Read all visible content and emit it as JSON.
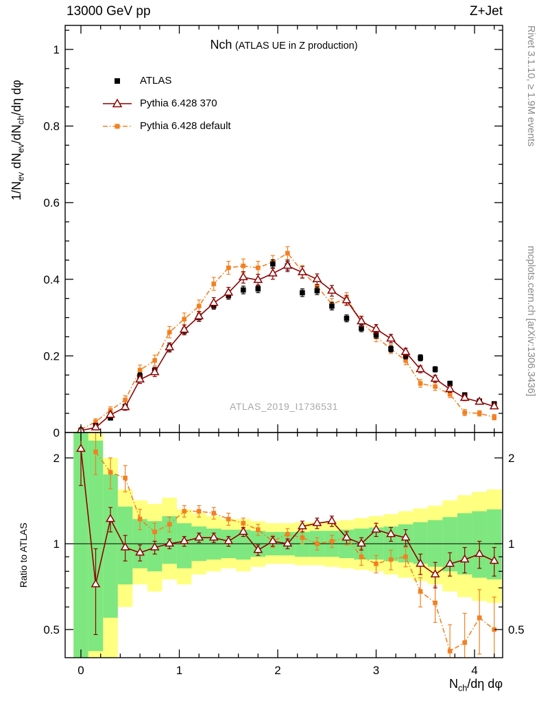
{
  "header": {
    "left": "13000 GeV pp",
    "right": "Z+Jet"
  },
  "side": {
    "top": "Rivet 3.1.10, ≥ 1.9M events",
    "bottom": "mcplots.cern.ch [arXiv:1306.3436]"
  },
  "title": {
    "main": "Nch",
    "paren": "(ATLAS UE in Z production)"
  },
  "watermark": {
    "text": "ATLAS_2019_I1736531"
  },
  "axes": {
    "ylabel_main_parts": {
      "a": "1/N",
      "b": "ev",
      "c": " dN",
      "d": "ev",
      "e": "/dN",
      "f": "ch",
      "g": "/dη dφ"
    },
    "ylabel_ratio": "Ratio to ATLAS",
    "xlabel_parts": {
      "a": "N",
      "b": "ch",
      "c": "/dη dφ"
    }
  },
  "legend": {
    "items": [
      {
        "label": "ATLAS",
        "marker": "filled-square",
        "color_key": "atlas"
      },
      {
        "label": "Pythia 6.428 370",
        "marker": "open-triangle-solid-line",
        "color_key": "p370"
      },
      {
        "label": "Pythia 6.428 default",
        "marker": "filled-square-dashdot-line",
        "color_key": "pdef"
      }
    ]
  },
  "colors": {
    "atlas": "#000000",
    "p370": "#8b0000",
    "pdef": "#f28022",
    "band_yellow": "#ffff80",
    "band_green": "#7fe77f",
    "frame": "#000000",
    "watermark": "#a8a8a8",
    "side_text": "#888888"
  },
  "chart_data": {
    "type": "line",
    "title": "Nch (ATLAS UE in Z production)",
    "xlabel": "N_ch/dη dφ",
    "ylabel_main": "1/N_ev dN_ev/dN_ch/dη dφ",
    "ylabel_ratio": "Ratio to ATLAS",
    "x_range": [
      -0.16,
      4.29
    ],
    "y_main_range": [
      0,
      1.063
    ],
    "y_ratio_range": [
      0.4,
      2.46
    ],
    "y_ratio_scale": "log",
    "legend_position": "top-left",
    "grid": false,
    "bin_halfwidth": 0.075,
    "x": [
      0.0,
      0.15,
      0.3,
      0.45,
      0.6,
      0.75,
      0.9,
      1.05,
      1.2,
      1.35,
      1.5,
      1.65,
      1.8,
      1.95,
      2.1,
      2.25,
      2.4,
      2.55,
      2.7,
      2.85,
      3.0,
      3.15,
      3.3,
      3.45,
      3.6,
      3.75,
      3.9,
      4.05,
      4.2
    ],
    "series": [
      {
        "name": "ATLAS",
        "marker": "square",
        "color_key": "atlas",
        "line": "none",
        "values": [
          0.005,
          0.018,
          0.038,
          0.068,
          0.148,
          0.162,
          0.222,
          0.265,
          0.3,
          0.332,
          0.358,
          0.372,
          0.375,
          0.44,
          0.435,
          0.365,
          0.37,
          0.33,
          0.298,
          0.272,
          0.255,
          0.218,
          0.2,
          0.195,
          0.165,
          0.128,
          0.098,
          0.082,
          0.075
        ],
        "errors": [
          0.003,
          0.004,
          0.005,
          0.006,
          0.008,
          0.008,
          0.009,
          0.009,
          0.01,
          0.01,
          0.01,
          0.01,
          0.01,
          0.011,
          0.011,
          0.01,
          0.01,
          0.01,
          0.009,
          0.009,
          0.009,
          0.008,
          0.008,
          0.008,
          0.007,
          0.006,
          0.006,
          0.005,
          0.005
        ]
      },
      {
        "name": "Pythia 6.428 370",
        "marker": "triangle-open",
        "color_key": "p370",
        "line": "solid",
        "values": [
          0.005,
          0.013,
          0.046,
          0.066,
          0.138,
          0.157,
          0.222,
          0.268,
          0.303,
          0.338,
          0.365,
          0.405,
          0.398,
          0.415,
          0.435,
          0.418,
          0.4,
          0.37,
          0.345,
          0.29,
          0.27,
          0.245,
          0.21,
          0.165,
          0.14,
          0.113,
          0.09,
          0.08,
          0.068
        ],
        "errors": [
          0.004,
          0.006,
          0.007,
          0.008,
          0.01,
          0.011,
          0.012,
          0.013,
          0.013,
          0.014,
          0.014,
          0.015,
          0.015,
          0.015,
          0.015,
          0.015,
          0.014,
          0.014,
          0.013,
          0.013,
          0.012,
          0.011,
          0.01,
          0.009,
          0.009,
          0.008,
          0.007,
          0.006,
          0.006
        ]
      },
      {
        "name": "Pythia 6.428 default",
        "marker": "square-small",
        "color_key": "pdef",
        "line": "dashdot",
        "values": [
          0.008,
          0.028,
          0.058,
          0.085,
          0.163,
          0.188,
          0.262,
          0.296,
          0.33,
          0.388,
          0.43,
          0.435,
          0.43,
          0.445,
          0.468,
          0.42,
          0.382,
          0.335,
          0.35,
          0.29,
          0.25,
          0.218,
          0.188,
          0.128,
          0.12,
          0.1,
          0.052,
          0.05,
          0.04
        ],
        "errors": [
          0.005,
          0.008,
          0.009,
          0.011,
          0.013,
          0.014,
          0.015,
          0.016,
          0.016,
          0.017,
          0.017,
          0.018,
          0.017,
          0.017,
          0.017,
          0.016,
          0.016,
          0.015,
          0.015,
          0.014,
          0.013,
          0.012,
          0.011,
          0.01,
          0.01,
          0.009,
          0.008,
          0.007,
          0.007
        ]
      }
    ],
    "ratio_series": [
      {
        "name": "Pythia 6.428 370",
        "marker": "triangle-open",
        "color_key": "p370",
        "line": "solid",
        "values": [
          2.15,
          0.72,
          1.22,
          0.97,
          0.93,
          0.97,
          1.0,
          1.02,
          1.05,
          1.05,
          1.02,
          1.1,
          0.95,
          1.02,
          1.0,
          1.15,
          1.18,
          1.2,
          1.05,
          1.0,
          1.12,
          1.08,
          1.05,
          0.85,
          0.78,
          0.85,
          0.88,
          0.92,
          0.87
        ],
        "errors": [
          0.55,
          0.24,
          0.12,
          0.1,
          0.06,
          0.05,
          0.04,
          0.04,
          0.04,
          0.04,
          0.04,
          0.04,
          0.04,
          0.04,
          0.04,
          0.05,
          0.05,
          0.05,
          0.05,
          0.05,
          0.06,
          0.06,
          0.07,
          0.07,
          0.08,
          0.08,
          0.09,
          0.1,
          0.1
        ]
      },
      {
        "name": "Pythia 6.428 default",
        "marker": "square-small",
        "color_key": "pdef",
        "line": "dashdot",
        "values": [
          null,
          2.1,
          1.78,
          1.7,
          1.22,
          1.1,
          1.17,
          1.3,
          1.3,
          1.28,
          1.22,
          1.18,
          1.12,
          1.02,
          1.08,
          1.05,
          1.0,
          1.02,
          1.05,
          0.9,
          0.85,
          0.88,
          0.9,
          0.68,
          0.62,
          0.42,
          0.45,
          0.55,
          0.5
        ],
        "errors": [
          0,
          0.35,
          0.22,
          0.18,
          0.1,
          0.08,
          0.07,
          0.06,
          0.06,
          0.06,
          0.06,
          0.05,
          0.05,
          0.05,
          0.05,
          0.05,
          0.05,
          0.05,
          0.06,
          0.06,
          0.06,
          0.07,
          0.07,
          0.08,
          0.09,
          0.1,
          0.12,
          0.14,
          0.15
        ]
      }
    ],
    "bands": {
      "yellow_lo": [
        0.28,
        0.3,
        0.3,
        0.6,
        0.72,
        0.68,
        0.75,
        0.72,
        0.78,
        0.8,
        0.82,
        0.8,
        0.83,
        0.85,
        0.85,
        0.84,
        0.84,
        0.83,
        0.82,
        0.81,
        0.8,
        0.78,
        0.76,
        0.74,
        0.72,
        0.68,
        0.65,
        0.63,
        0.62
      ],
      "yellow_hi": [
        2.6,
        2.6,
        2.0,
        1.55,
        1.42,
        1.38,
        1.45,
        1.32,
        1.28,
        1.25,
        1.22,
        1.22,
        1.2,
        1.18,
        1.18,
        1.19,
        1.19,
        1.2,
        1.21,
        1.23,
        1.25,
        1.27,
        1.3,
        1.33,
        1.36,
        1.42,
        1.48,
        1.52,
        1.55
      ],
      "green_lo": [
        0.3,
        0.42,
        0.55,
        0.72,
        0.82,
        0.8,
        0.85,
        0.82,
        0.87,
        0.88,
        0.89,
        0.88,
        0.9,
        0.91,
        0.91,
        0.9,
        0.9,
        0.9,
        0.89,
        0.88,
        0.88,
        0.87,
        0.86,
        0.85,
        0.83,
        0.8,
        0.78,
        0.76,
        0.75
      ],
      "green_hi": [
        2.55,
        2.3,
        1.75,
        1.35,
        1.22,
        1.2,
        1.25,
        1.18,
        1.15,
        1.13,
        1.12,
        1.12,
        1.11,
        1.1,
        1.1,
        1.1,
        1.11,
        1.11,
        1.12,
        1.13,
        1.14,
        1.15,
        1.17,
        1.19,
        1.21,
        1.24,
        1.28,
        1.3,
        1.32
      ]
    },
    "xticks": {
      "major": [
        0,
        1,
        2,
        3,
        4
      ],
      "labels": [
        "0",
        "1",
        "2",
        "3",
        "4"
      ],
      "minor_step": 0.2
    },
    "yticks_main": {
      "major": [
        0,
        0.2,
        0.4,
        0.6,
        0.8,
        1
      ],
      "labels": [
        "0",
        "0.2",
        "0.4",
        "0.6",
        "0.8",
        "1"
      ],
      "minor_step": 0.05
    },
    "yticks_ratio": {
      "labeled": [
        0.5,
        1,
        2
      ],
      "labels": [
        "0.5",
        "1",
        "2"
      ],
      "minor": [
        0.4,
        0.6,
        0.7,
        0.8,
        0.9
      ]
    }
  }
}
